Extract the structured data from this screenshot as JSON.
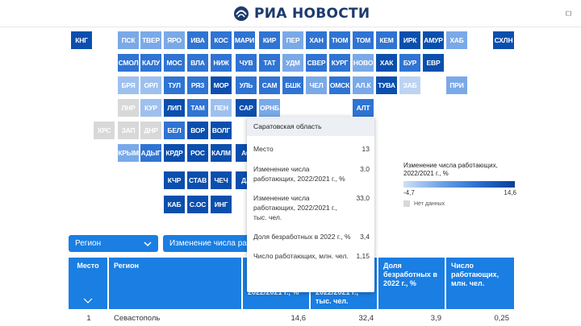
{
  "header": {
    "logo_text": "РИА НОВОСТИ",
    "right_text": "ㅁ"
  },
  "colors": {
    "nodata": "#d8d8d8",
    "low": "#cfe0f7",
    "high": "#0b3f97",
    "accent": "#1a7ee2"
  },
  "map": {
    "cells": [
      {
        "code": "КНГ",
        "v": 12
      },
      {
        "code": "ПСК",
        "v": 5
      },
      {
        "code": "ТВЕР",
        "v": 5
      },
      {
        "code": "ЯРО",
        "v": 5
      },
      {
        "code": "ИВА",
        "v": 7
      },
      {
        "code": "КОС",
        "v": 7
      },
      {
        "code": "МАРИ",
        "v": 7
      },
      {
        "code": "КИР",
        "v": 7
      },
      {
        "code": "ПЕР",
        "v": 5
      },
      {
        "code": "ХАН",
        "v": 7
      },
      {
        "code": "ТЮМ",
        "v": 7
      },
      {
        "code": "ТОМ",
        "v": 7
      },
      {
        "code": "КЕМ",
        "v": 7
      },
      {
        "code": "ИРК",
        "v": 12
      },
      {
        "code": "АМУР",
        "v": 12
      },
      {
        "code": "ХАБ",
        "v": 5
      },
      {
        "code": "СХЛН",
        "v": 12
      },
      {
        "code": "СМОЛ",
        "v": 7
      },
      {
        "code": "КАЛУ",
        "v": 7
      },
      {
        "code": "МОС",
        "v": 7
      },
      {
        "code": "ВЛА",
        "v": 7
      },
      {
        "code": "НИЖ",
        "v": 7
      },
      {
        "code": "ЧУВ",
        "v": 7
      },
      {
        "code": "ТАТ",
        "v": 7
      },
      {
        "code": "УДМ",
        "v": 5
      },
      {
        "code": "СВЕР",
        "v": 7
      },
      {
        "code": "КУРГ",
        "v": 7
      },
      {
        "code": "НОВО",
        "v": 5
      },
      {
        "code": "ХАК",
        "v": 12
      },
      {
        "code": "БУР",
        "v": 7
      },
      {
        "code": "ЕВР",
        "v": 12
      },
      {
        "code": "БРЯ",
        "v": 4
      },
      {
        "code": "ОРЛ",
        "v": 4
      },
      {
        "code": "ТУЛ",
        "v": 7
      },
      {
        "code": "РЯЗ",
        "v": 7
      },
      {
        "code": "МОР",
        "v": 12
      },
      {
        "code": "УЛЬ",
        "v": 7
      },
      {
        "code": "САМ",
        "v": 7
      },
      {
        "code": "БШК",
        "v": 7
      },
      {
        "code": "ЧЕЛ",
        "v": 5
      },
      {
        "code": "ОМСК",
        "v": 7
      },
      {
        "code": "АЛ.К",
        "v": 5
      },
      {
        "code": "ТУВА",
        "v": 12
      },
      {
        "code": "ЗАБ",
        "v": 3
      },
      {
        "code": "ПРИ",
        "v": 5
      },
      {
        "code": "ЛНР",
        "v": 0
      },
      {
        "code": "КУР",
        "v": 4
      },
      {
        "code": "ЛИП",
        "v": 12
      },
      {
        "code": "ТАМ",
        "v": 7
      },
      {
        "code": "ПЕН",
        "v": 4
      },
      {
        "code": "САР",
        "v": 12
      },
      {
        "code": "ОРНБ",
        "v": 5
      },
      {
        "code": "АЛТ",
        "v": 7
      },
      {
        "code": "ХРС",
        "v": 0
      },
      {
        "code": "ЗАП",
        "v": 0
      },
      {
        "code": "ДНР",
        "v": 0
      },
      {
        "code": "БЕЛ",
        "v": 7
      },
      {
        "code": "ВОР",
        "v": 12
      },
      {
        "code": "ВОЛГ",
        "v": 12
      },
      {
        "code": "КРЫМ",
        "v": 5
      },
      {
        "code": "АДЫГ",
        "v": 7
      },
      {
        "code": "КРДР",
        "v": 12
      },
      {
        "code": "РОС",
        "v": 12
      },
      {
        "code": "КАЛМ",
        "v": 12
      },
      {
        "code": "АС",
        "v": 12
      },
      {
        "code": "КЧР",
        "v": 12
      },
      {
        "code": "СТАВ",
        "v": 12
      },
      {
        "code": "ЧЕЧ",
        "v": 12
      },
      {
        "code": "ДА",
        "v": 12
      },
      {
        "code": "КАБ",
        "v": 12
      },
      {
        "code": "С.ОС",
        "v": 12
      },
      {
        "code": "ИНГ",
        "v": 12
      }
    ]
  },
  "legend": {
    "title": "Изменение числа работающих, 2022/2021 г., %",
    "min": "-4,7",
    "max": "14,6",
    "nodata": "Нет данных",
    "min_value": -4.7,
    "max_value": 14.6
  },
  "selects": {
    "region": "Регион",
    "metric": "Изменение числа работа"
  },
  "table": {
    "headers": [
      "Место",
      "Регион",
      "Изменение числа работающих, 2022/2021 г., %",
      "Изменение числа работающих, 2022/2021 г., тыс. чел.",
      "Доля безработных в 2022 г., %",
      "Число работающих, млн. чел."
    ],
    "rows": [
      [
        "1",
        "Севастополь",
        "14,6",
        "32,4",
        "3,9",
        "0,25"
      ]
    ]
  },
  "tooltip": {
    "title": "Саратовская область",
    "rows": [
      {
        "label": "Место",
        "value": "13"
      },
      {
        "label": "Изменение числа работающих, 2022/2021 г., %",
        "value": "3,0"
      },
      {
        "label": "Изменение числа работающих, 2022/2021 г., тыс. чел.",
        "value": "33,0"
      },
      {
        "label": "Доля безработных в 2022 г., %",
        "value": "3,4"
      },
      {
        "label": "Число работающих, млн. чел.",
        "value": "1,15"
      }
    ]
  }
}
